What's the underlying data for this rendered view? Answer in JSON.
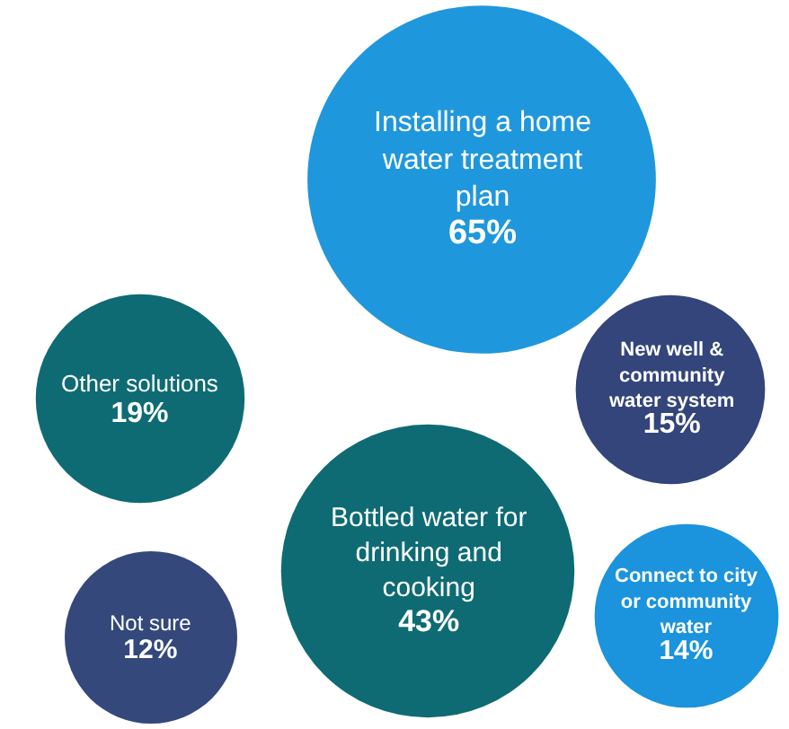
{
  "chart_data": {
    "type": "other",
    "categories": [
      "Installing a home water treatment plan",
      "Other solutions",
      "New well & community water system",
      "Bottled water for drinking and cooking",
      "Not sure",
      "Connect to city or community water"
    ],
    "values": [
      65,
      19,
      15,
      43,
      12,
      14
    ],
    "value_labels": [
      "65%",
      "19%",
      "15%",
      "43%",
      "12%",
      "14%"
    ],
    "colors": [
      "#1f97dd",
      "#0e6b73",
      "#33457a",
      "#0e6b73",
      "#34487c",
      "#1b93dd"
    ]
  }
}
